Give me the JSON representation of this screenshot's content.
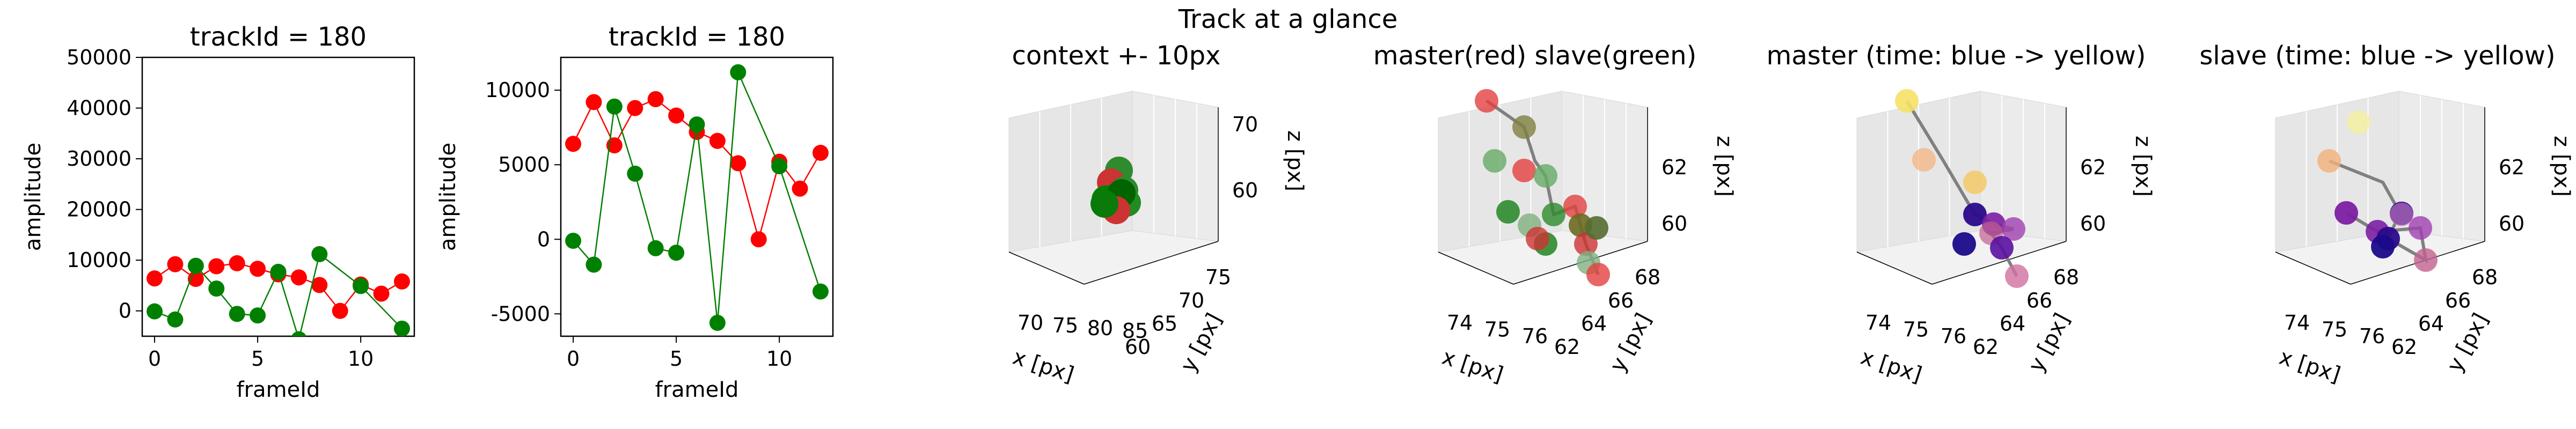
{
  "suptitle": "Track at a glance",
  "colors": {
    "master": "#ff0000",
    "slave": "#008000",
    "path": "#808080"
  },
  "chart_data": [
    {
      "type": "line",
      "title": "trackId = 180",
      "xlabel": "frameId",
      "ylabel": "amplitude",
      "xlim": [
        -0.6,
        12.6
      ],
      "ylim": [
        -5000,
        50000
      ],
      "xticks": [
        "0",
        "5",
        "10"
      ],
      "yticks": [
        "0",
        "10000",
        "20000",
        "30000",
        "40000",
        "50000"
      ],
      "x": [
        0,
        1,
        2,
        3,
        4,
        5,
        6,
        7,
        8,
        9,
        10,
        11,
        12
      ],
      "series": [
        {
          "values": [
            6400,
            9200,
            6300,
            8800,
            9400,
            8300,
            7200,
            6600,
            5100,
            0,
            5200,
            3400,
            5800
          ],
          "color": "#ff0000"
        },
        {
          "values": [
            -100,
            -1700,
            8900,
            4400,
            -600,
            -900,
            7700,
            -5600,
            11200,
            null,
            4900,
            null,
            -3500
          ],
          "color": "#008000"
        }
      ]
    },
    {
      "type": "line",
      "title": "trackId = 180",
      "xlabel": "frameId",
      "ylabel": "amplitude",
      "xlim": [
        -0.6,
        12.6
      ],
      "ylim": [
        -6500,
        12200
      ],
      "xticks": [
        "0",
        "5",
        "10"
      ],
      "yticks": [
        "-5000",
        "0",
        "5000",
        "10000"
      ],
      "x": [
        0,
        1,
        2,
        3,
        4,
        5,
        6,
        7,
        8,
        9,
        10,
        11,
        12
      ],
      "series": [
        {
          "values": [
            6400,
            9200,
            6300,
            8800,
            9400,
            8300,
            7200,
            6600,
            5100,
            0,
            5200,
            3400,
            5800
          ],
          "color": "#ff0000"
        },
        {
          "values": [
            -100,
            -1700,
            8900,
            4400,
            -600,
            -900,
            7700,
            -5600,
            11200,
            null,
            4900,
            null,
            -3500
          ],
          "color": "#008000"
        }
      ]
    },
    {
      "type": "scatter",
      "title": "context +- 10px",
      "xlabel": "x [px]",
      "ylabel": "y [px]",
      "zlabel": "z [px]",
      "xticks": [
        "70",
        "75",
        "80",
        "85"
      ],
      "yticks": [
        "60",
        "65",
        "70",
        "75"
      ],
      "zticks": [
        "60",
        "70"
      ]
    },
    {
      "type": "scatter",
      "title": "master(red) slave(green)",
      "xlabel": "x [px]",
      "ylabel": "y [px]",
      "zlabel": "z [px]",
      "xticks": [
        "74",
        "75",
        "76"
      ],
      "yticks": [
        "62",
        "64",
        "66",
        "68"
      ],
      "zticks": [
        "60",
        "62"
      ]
    },
    {
      "type": "scatter",
      "title": "master (time: blue -> yellow)",
      "xlabel": "x [px]",
      "ylabel": "y [px]",
      "zlabel": "z [px]",
      "xticks": [
        "74",
        "75",
        "76"
      ],
      "yticks": [
        "62",
        "64",
        "66",
        "68"
      ],
      "zticks": [
        "60",
        "62"
      ]
    },
    {
      "type": "scatter",
      "title": "slave (time: blue -> yellow)",
      "xlabel": "x [px]",
      "ylabel": "y [px]",
      "zlabel": "z [px]",
      "xticks": [
        "74",
        "75",
        "76"
      ],
      "yticks": [
        "62",
        "64",
        "66",
        "68"
      ],
      "zticks": [
        "60",
        "62"
      ]
    }
  ]
}
